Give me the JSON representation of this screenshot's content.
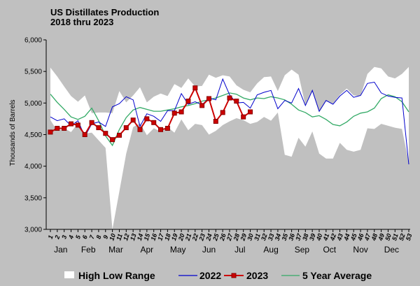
{
  "chart_data": {
    "type": "line",
    "title": "US Distillates Production",
    "subtitle": "2018 thru 2023",
    "ylabel": "Thousands of Barrels",
    "ylim": [
      3000,
      6000
    ],
    "yticks": [
      "3,000",
      "3,500",
      "4,000",
      "4,500",
      "5,000",
      "5,500",
      "6,000"
    ],
    "ytick_values": [
      3000,
      3500,
      4000,
      4500,
      5000,
      5500,
      6000
    ],
    "grid": false,
    "legend_position": "bottom",
    "x_week_labels": [
      "1",
      "2",
      "3",
      "4",
      "5",
      "6",
      "7",
      "8",
      "9",
      "10",
      "11",
      "12",
      "13",
      "14",
      "15",
      "16",
      "17",
      "18",
      "19",
      "20",
      "21",
      "22",
      "23",
      "24",
      "25",
      "26",
      "27",
      "28",
      "29",
      "30",
      "31",
      "32",
      "33",
      "34",
      "35",
      "36",
      "37",
      "38",
      "39",
      "40",
      "41",
      "42",
      "43",
      "44",
      "45",
      "46",
      "47",
      "48",
      "49",
      "50",
      "51",
      "52",
      "53"
    ],
    "months": [
      {
        "label": "Jan",
        "center_week": 2.5
      },
      {
        "label": "Feb",
        "center_week": 6.5
      },
      {
        "label": "Mar",
        "center_week": 10.5
      },
      {
        "label": "Apr",
        "center_week": 15
      },
      {
        "label": "May",
        "center_week": 19.5
      },
      {
        "label": "Jun",
        "center_week": 24
      },
      {
        "label": "Jul",
        "center_week": 28.5
      },
      {
        "label": "Aug",
        "center_week": 33
      },
      {
        "label": "Sep",
        "center_week": 37.5
      },
      {
        "label": "Oct",
        "center_week": 41.5
      },
      {
        "label": "Nov",
        "center_week": 46
      },
      {
        "label": "Dec",
        "center_week": 50.5
      }
    ],
    "series": [
      {
        "name": "High Low Range",
        "type": "band",
        "color": "#ffffff",
        "high": [
          5560,
          5420,
          5260,
          5110,
          5020,
          5120,
          4840,
          4850,
          4850,
          4840,
          5190,
          5010,
          5120,
          5250,
          5010,
          5100,
          5150,
          5110,
          5300,
          5240,
          5390,
          5260,
          5270,
          5450,
          5400,
          5440,
          5420,
          5280,
          5210,
          5170,
          5310,
          5410,
          5420,
          5190,
          5440,
          5530,
          5450,
          4960,
          5180,
          4850,
          5030,
          4990,
          5130,
          5230,
          5120,
          5110,
          5460,
          5570,
          5550,
          5420,
          5390,
          5460,
          5570
        ],
        "low": [
          4730,
          4560,
          4600,
          4540,
          4680,
          4520,
          4530,
          4410,
          4290,
          3000,
          3600,
          4200,
          4620,
          4680,
          4490,
          4600,
          4550,
          4620,
          4530,
          4740,
          4570,
          4670,
          4650,
          4500,
          4560,
          4650,
          4710,
          4760,
          4730,
          4670,
          4700,
          4780,
          4720,
          4850,
          4180,
          4150,
          4450,
          4310,
          4550,
          4200,
          4120,
          4120,
          4370,
          4260,
          4230,
          4260,
          4600,
          4590,
          4670,
          4640,
          4610,
          4590,
          4060
        ]
      },
      {
        "name": "2022",
        "type": "line",
        "color": "#0000cc",
        "values": [
          4780,
          4720,
          4750,
          4640,
          4720,
          4470,
          4670,
          4700,
          4630,
          4940,
          4990,
          5100,
          5050,
          4630,
          4830,
          4790,
          4710,
          4880,
          4880,
          5150,
          4980,
          5020,
          4970,
          5080,
          5050,
          5380,
          5130,
          5000,
          5010,
          4920,
          5130,
          5170,
          5200,
          4910,
          5040,
          5000,
          5230,
          4960,
          5200,
          4870,
          5040,
          4980,
          5110,
          5200,
          5090,
          5120,
          5310,
          5330,
          5160,
          5110,
          5090,
          5080,
          4030
        ]
      },
      {
        "name": "2023",
        "type": "line",
        "color": "#cc0000",
        "marker_color": "#880000",
        "values": [
          4540,
          4600,
          4600,
          4670,
          4650,
          4500,
          4690,
          4610,
          4520,
          4420,
          4490,
          4610,
          4730,
          4580,
          4750,
          4690,
          4580,
          4600,
          4840,
          4860,
          5030,
          5240,
          4960,
          5070,
          4710,
          4850,
          5080,
          5030,
          4780,
          4860
        ]
      },
      {
        "name": "5 Year Average",
        "type": "line",
        "color": "#33aa66",
        "values": [
          5140,
          5010,
          4900,
          4780,
          4740,
          4790,
          4920,
          4720,
          4480,
          4330,
          4580,
          4770,
          4890,
          4930,
          4900,
          4870,
          4870,
          4890,
          4910,
          4940,
          4960,
          4990,
          5030,
          5050,
          5080,
          5120,
          5160,
          5140,
          5080,
          5050,
          5080,
          5070,
          5100,
          5080,
          5050,
          4980,
          4890,
          4850,
          4780,
          4800,
          4740,
          4660,
          4640,
          4700,
          4790,
          4840,
          4860,
          4920,
          5070,
          5130,
          5100,
          5020,
          4860
        ]
      }
    ]
  },
  "colors": {
    "background": "#c0c0c0",
    "plot_background": "#c0c0c0"
  }
}
